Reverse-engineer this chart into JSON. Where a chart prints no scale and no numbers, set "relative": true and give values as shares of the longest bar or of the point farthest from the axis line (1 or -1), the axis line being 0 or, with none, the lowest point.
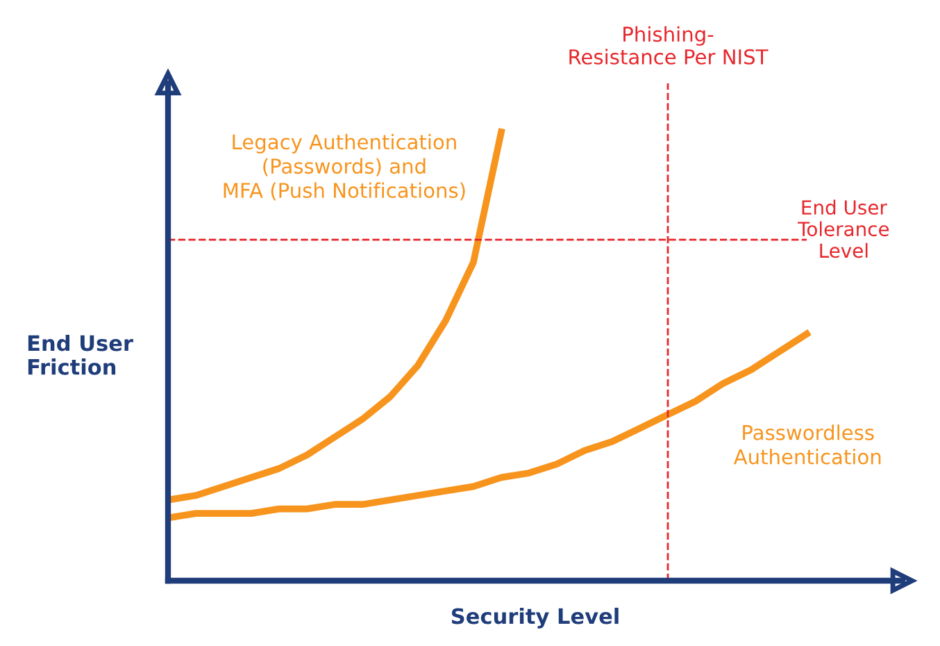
{
  "chart_data": {
    "type": "line",
    "relative": true,
    "xlabel": "Security Level",
    "ylabel": "End User Friction",
    "categories": [
      null,
      null,
      null,
      null,
      null,
      null,
      null,
      null,
      null,
      null,
      null,
      null,
      null,
      null,
      null,
      null,
      null,
      null,
      null,
      null,
      null,
      null,
      null,
      null
    ],
    "series": [
      {
        "name": "Legacy Authentication\n(Passwords) and\nMFA (Push Notifications)",
        "color": "#f7941d",
        "values": [
          0.18,
          0.19,
          0.21,
          0.23,
          0.25,
          0.28,
          0.32,
          0.36,
          0.41,
          0.48,
          0.58,
          0.71,
          1.0,
          null,
          null,
          null,
          null,
          null,
          null,
          null,
          null,
          null,
          null,
          null
        ]
      },
      {
        "name": "Passwordless\nAuthentication",
        "color": "#f7941d",
        "values": [
          0.14,
          0.15,
          0.15,
          0.15,
          0.16,
          0.16,
          0.17,
          0.17,
          0.18,
          0.19,
          0.2,
          0.21,
          0.23,
          0.24,
          0.26,
          0.29,
          0.31,
          0.34,
          0.37,
          0.4,
          0.44,
          0.47,
          0.51,
          0.55
        ]
      }
    ],
    "ref_lines": [
      {
        "axis": "y",
        "value": 0.76,
        "label": "End User\nTolerance\nLevel",
        "color": "#e8262b",
        "line_style": "dashed"
      }
    ],
    "annotations": [
      "Phishing-\nResistance Per NIST"
    ],
    "marker": "none",
    "line_style": "solid",
    "legend": false
  }
}
